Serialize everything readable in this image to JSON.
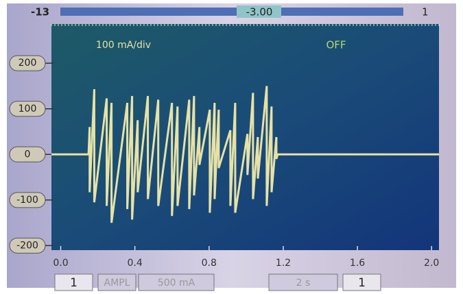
{
  "top_bar": {
    "left": "-13",
    "value": "-3.00",
    "right": "1"
  },
  "chart_data": {
    "type": "line",
    "annotations": {
      "scale": "100 mA/div",
      "state": "OFF"
    },
    "x": [
      -0.05,
      0.15,
      0.156,
      0.156,
      0.181,
      0.181,
      0.248,
      0.248,
      0.274,
      0.274,
      0.359,
      0.359,
      0.385,
      0.385,
      0.415,
      0.415,
      0.47,
      0.47,
      0.526,
      0.526,
      0.6,
      0.6,
      0.63,
      0.63,
      0.693,
      0.693,
      0.719,
      0.719,
      0.748,
      0.748,
      0.804,
      0.804,
      0.83,
      0.83,
      0.852,
      0.852,
      0.915,
      0.915,
      0.941,
      0.941,
      1.007,
      1.007,
      1.037,
      1.037,
      1.063,
      1.063,
      1.111,
      1.111,
      1.137,
      1.137,
      1.163,
      1.163,
      1.17,
      2.04
    ],
    "values": [
      0,
      0,
      60,
      -83,
      143,
      -105,
      123,
      -113,
      113,
      -150,
      113,
      -120,
      128,
      -143,
      75,
      -83,
      128,
      -98,
      120,
      -113,
      113,
      -135,
      105,
      -113,
      120,
      -120,
      128,
      -90,
      60,
      -23,
      98,
      -128,
      113,
      -98,
      98,
      -30,
      53,
      -113,
      113,
      -128,
      45,
      -45,
      135,
      -98,
      38,
      -53,
      150,
      -113,
      105,
      -83,
      38,
      -10,
      0,
      0
    ],
    "color": "#e6e2a6",
    "xlim": [
      -0.05,
      2.04
    ],
    "ylim": [
      -210,
      286
    ],
    "xticks": [
      {
        "value": 0,
        "label": "0.0"
      },
      0.4,
      0.8,
      1.2,
      1.6,
      {
        "value": 2,
        "label": "2.0"
      }
    ],
    "yticks": [
      200,
      100,
      0,
      -100,
      -200
    ]
  },
  "buttons": [
    "1",
    "AMPL",
    "500 mA",
    "2 s",
    "1"
  ]
}
